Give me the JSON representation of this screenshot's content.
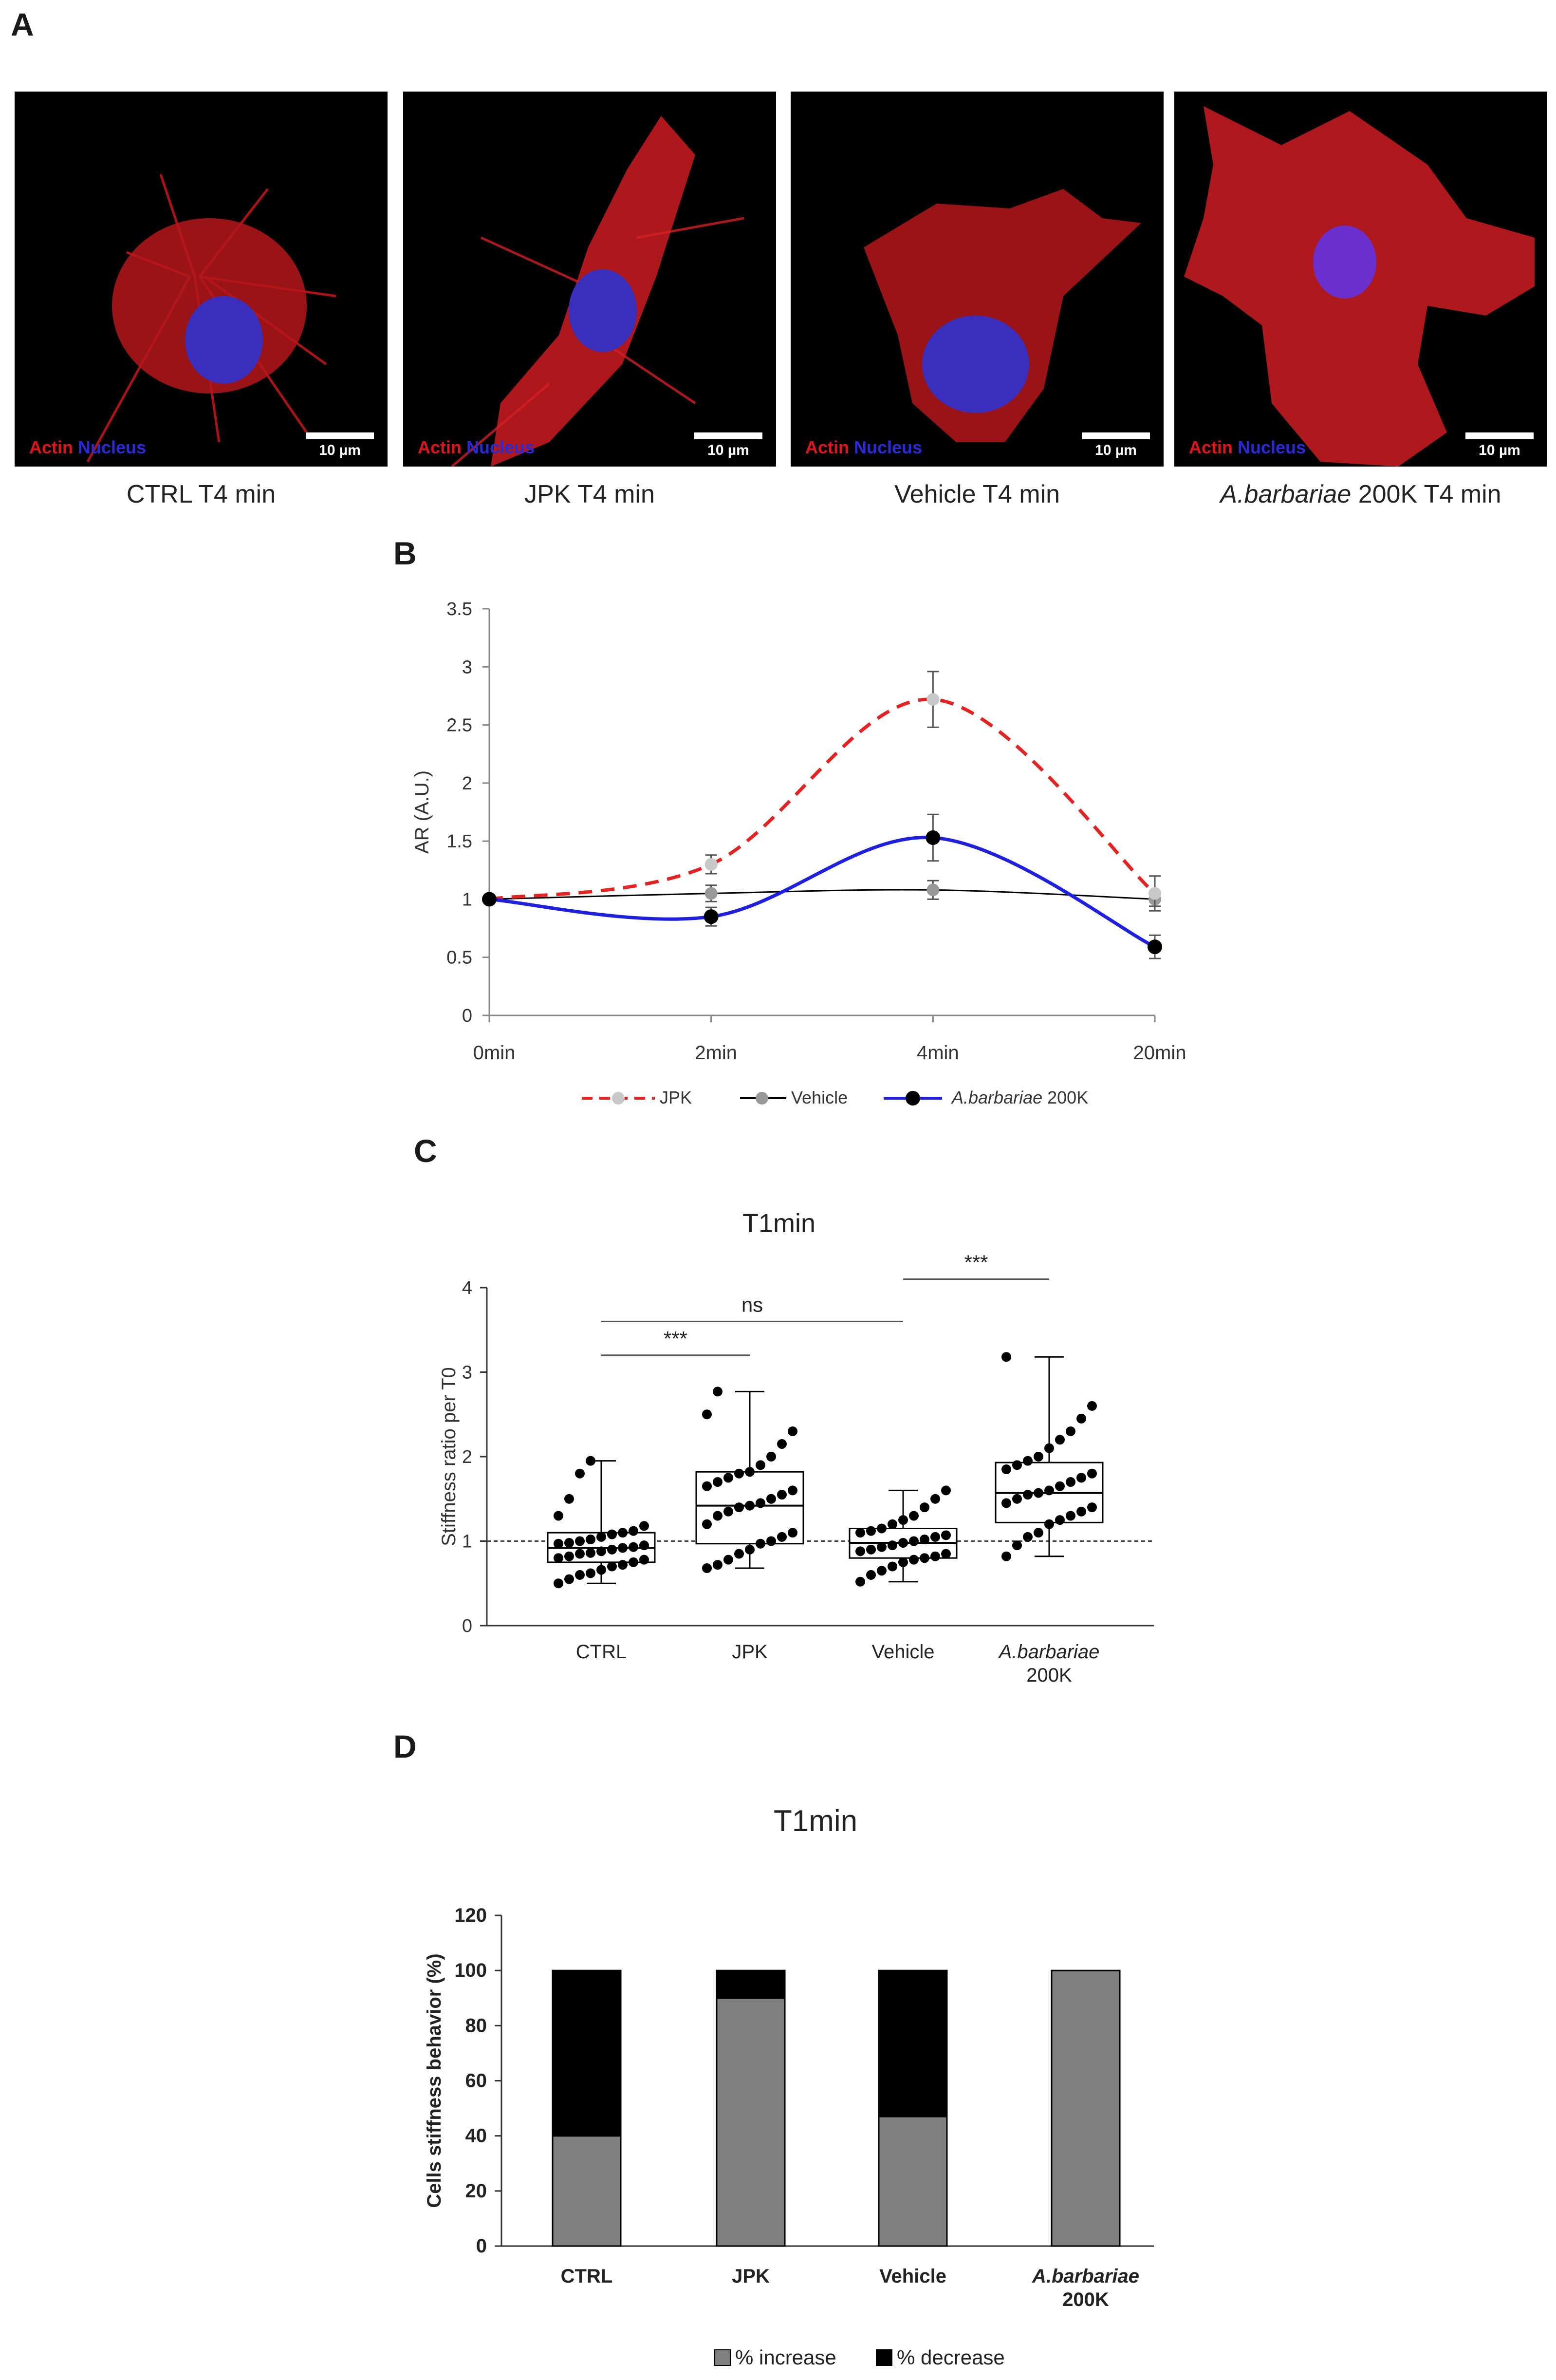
{
  "panels": {
    "A": {
      "letter": "A",
      "tiles": [
        {
          "caption": "CTRL T4 min",
          "stain_actin": "Actin",
          "stain_nucleus": "Nucleus",
          "scale": "10 µm"
        },
        {
          "caption": "JPK T4 min",
          "stain_actin": "Actin",
          "stain_nucleus": "Nucleus",
          "scale": "10 µm"
        },
        {
          "caption": "Vehicle T4 min",
          "stain_actin": "Actin",
          "stain_nucleus": "Nucleus",
          "scale": "10 µm"
        },
        {
          "caption_italic": "A.barbariae",
          "caption_rest": " 200K T4 min",
          "stain_actin": "Actin",
          "stain_nucleus": "Nucleus",
          "scale": "10 µm"
        }
      ]
    },
    "B": {
      "letter": "B"
    },
    "C": {
      "letter": "C"
    },
    "D": {
      "letter": "D"
    }
  },
  "chart_data": [
    {
      "type": "line",
      "panel": "B",
      "ylabel": "AR (A.U.)",
      "categories": [
        "0min",
        "2min",
        "4min",
        "20min"
      ],
      "ylim": [
        0,
        3.5
      ],
      "yticks": [
        "0",
        "0.5",
        "1",
        "1.5",
        "2",
        "2.5",
        "3",
        "3.5"
      ],
      "series": [
        {
          "name": "JPK",
          "values": [
            1.0,
            1.3,
            2.72,
            1.05
          ],
          "errors": [
            0,
            0.08,
            0.24,
            0.15
          ],
          "color": "#e52222",
          "marker": "#c8c8c8",
          "dashed": true
        },
        {
          "name": "Vehicle",
          "values": [
            1.0,
            1.05,
            1.08,
            1.0
          ],
          "errors": [
            0,
            0.07,
            0.08,
            0.06
          ],
          "color": "#000000",
          "marker": "#999999",
          "dashed": false
        },
        {
          "name_italic": "A.barbariae",
          "name_rest": " 200K",
          "values": [
            1.0,
            0.85,
            1.53,
            0.59
          ],
          "errors": [
            0,
            0.08,
            0.2,
            0.1
          ],
          "color": "#1f1fe0",
          "marker": "#000000",
          "dashed": false
        }
      ]
    },
    {
      "type": "box",
      "panel": "C",
      "title": "T1min",
      "ylabel": "Stiffness ratio per T0",
      "ylim": [
        0,
        4
      ],
      "yticks": [
        "0",
        "1",
        "2",
        "3",
        "4"
      ],
      "reference_line": 1,
      "groups": [
        {
          "label": "CTRL",
          "min": 0.5,
          "q1": 0.75,
          "median": 0.92,
          "q3": 1.1,
          "max": 1.95,
          "points": [
            0.5,
            0.55,
            0.6,
            0.62,
            0.66,
            0.7,
            0.72,
            0.75,
            0.78,
            0.8,
            0.82,
            0.85,
            0.86,
            0.88,
            0.9,
            0.92,
            0.93,
            0.95,
            0.97,
            0.98,
            1.0,
            1.02,
            1.05,
            1.08,
            1.1,
            1.12,
            1.18,
            1.3,
            1.5,
            1.8,
            1.95
          ]
        },
        {
          "label": "JPK",
          "min": 0.68,
          "q1": 0.97,
          "median": 1.42,
          "q3": 1.82,
          "max": 2.77,
          "points": [
            0.68,
            0.72,
            0.78,
            0.85,
            0.9,
            0.97,
            1.0,
            1.05,
            1.1,
            1.2,
            1.3,
            1.35,
            1.4,
            1.42,
            1.45,
            1.5,
            1.55,
            1.6,
            1.65,
            1.7,
            1.75,
            1.8,
            1.82,
            1.9,
            2.0,
            2.15,
            2.3,
            2.5,
            2.77
          ]
        },
        {
          "label": "Vehicle",
          "min": 0.52,
          "q1": 0.8,
          "median": 0.98,
          "q3": 1.15,
          "max": 1.6,
          "points": [
            0.52,
            0.6,
            0.65,
            0.7,
            0.75,
            0.78,
            0.8,
            0.82,
            0.85,
            0.88,
            0.9,
            0.93,
            0.95,
            0.98,
            1.0,
            1.02,
            1.05,
            1.07,
            1.1,
            1.12,
            1.15,
            1.2,
            1.25,
            1.3,
            1.4,
            1.5,
            1.6
          ]
        },
        {
          "label": "A.barbariae",
          "label2": "200K",
          "min": 0.82,
          "q1": 1.22,
          "median": 1.57,
          "q3": 1.93,
          "max": 3.18,
          "points": [
            0.82,
            0.95,
            1.05,
            1.1,
            1.2,
            1.25,
            1.3,
            1.35,
            1.4,
            1.45,
            1.5,
            1.55,
            1.57,
            1.6,
            1.65,
            1.7,
            1.75,
            1.8,
            1.85,
            1.9,
            1.95,
            2.0,
            2.1,
            2.2,
            2.3,
            2.45,
            2.6,
            3.18
          ]
        }
      ],
      "comparisons": [
        {
          "from": "CTRL",
          "to": "JPK",
          "label": "***",
          "level": 3.2
        },
        {
          "from": "CTRL",
          "to": "Vehicle",
          "label": "ns",
          "level": 3.6
        },
        {
          "from": "Vehicle",
          "to": "A.barbariae",
          "label": "***",
          "level": 4.1
        }
      ]
    },
    {
      "type": "bar",
      "stacked": true,
      "panel": "D",
      "title": "T1min",
      "ylabel": "Cells stiffness behavior (%)",
      "ylim": [
        0,
        120
      ],
      "yticks": [
        "0",
        "20",
        "40",
        "60",
        "80",
        "100",
        "120"
      ],
      "categories": [
        "CTRL",
        "JPK",
        "Vehicle",
        "A.barbariae"
      ],
      "category_line2": [
        "",
        "",
        "",
        "200K"
      ],
      "series": [
        {
          "name": "% increase",
          "values": [
            40,
            90,
            47,
            100
          ],
          "color": "#808080"
        },
        {
          "name": "% decrease",
          "values": [
            60,
            10,
            53,
            0
          ],
          "color": "#000000"
        }
      ]
    }
  ]
}
